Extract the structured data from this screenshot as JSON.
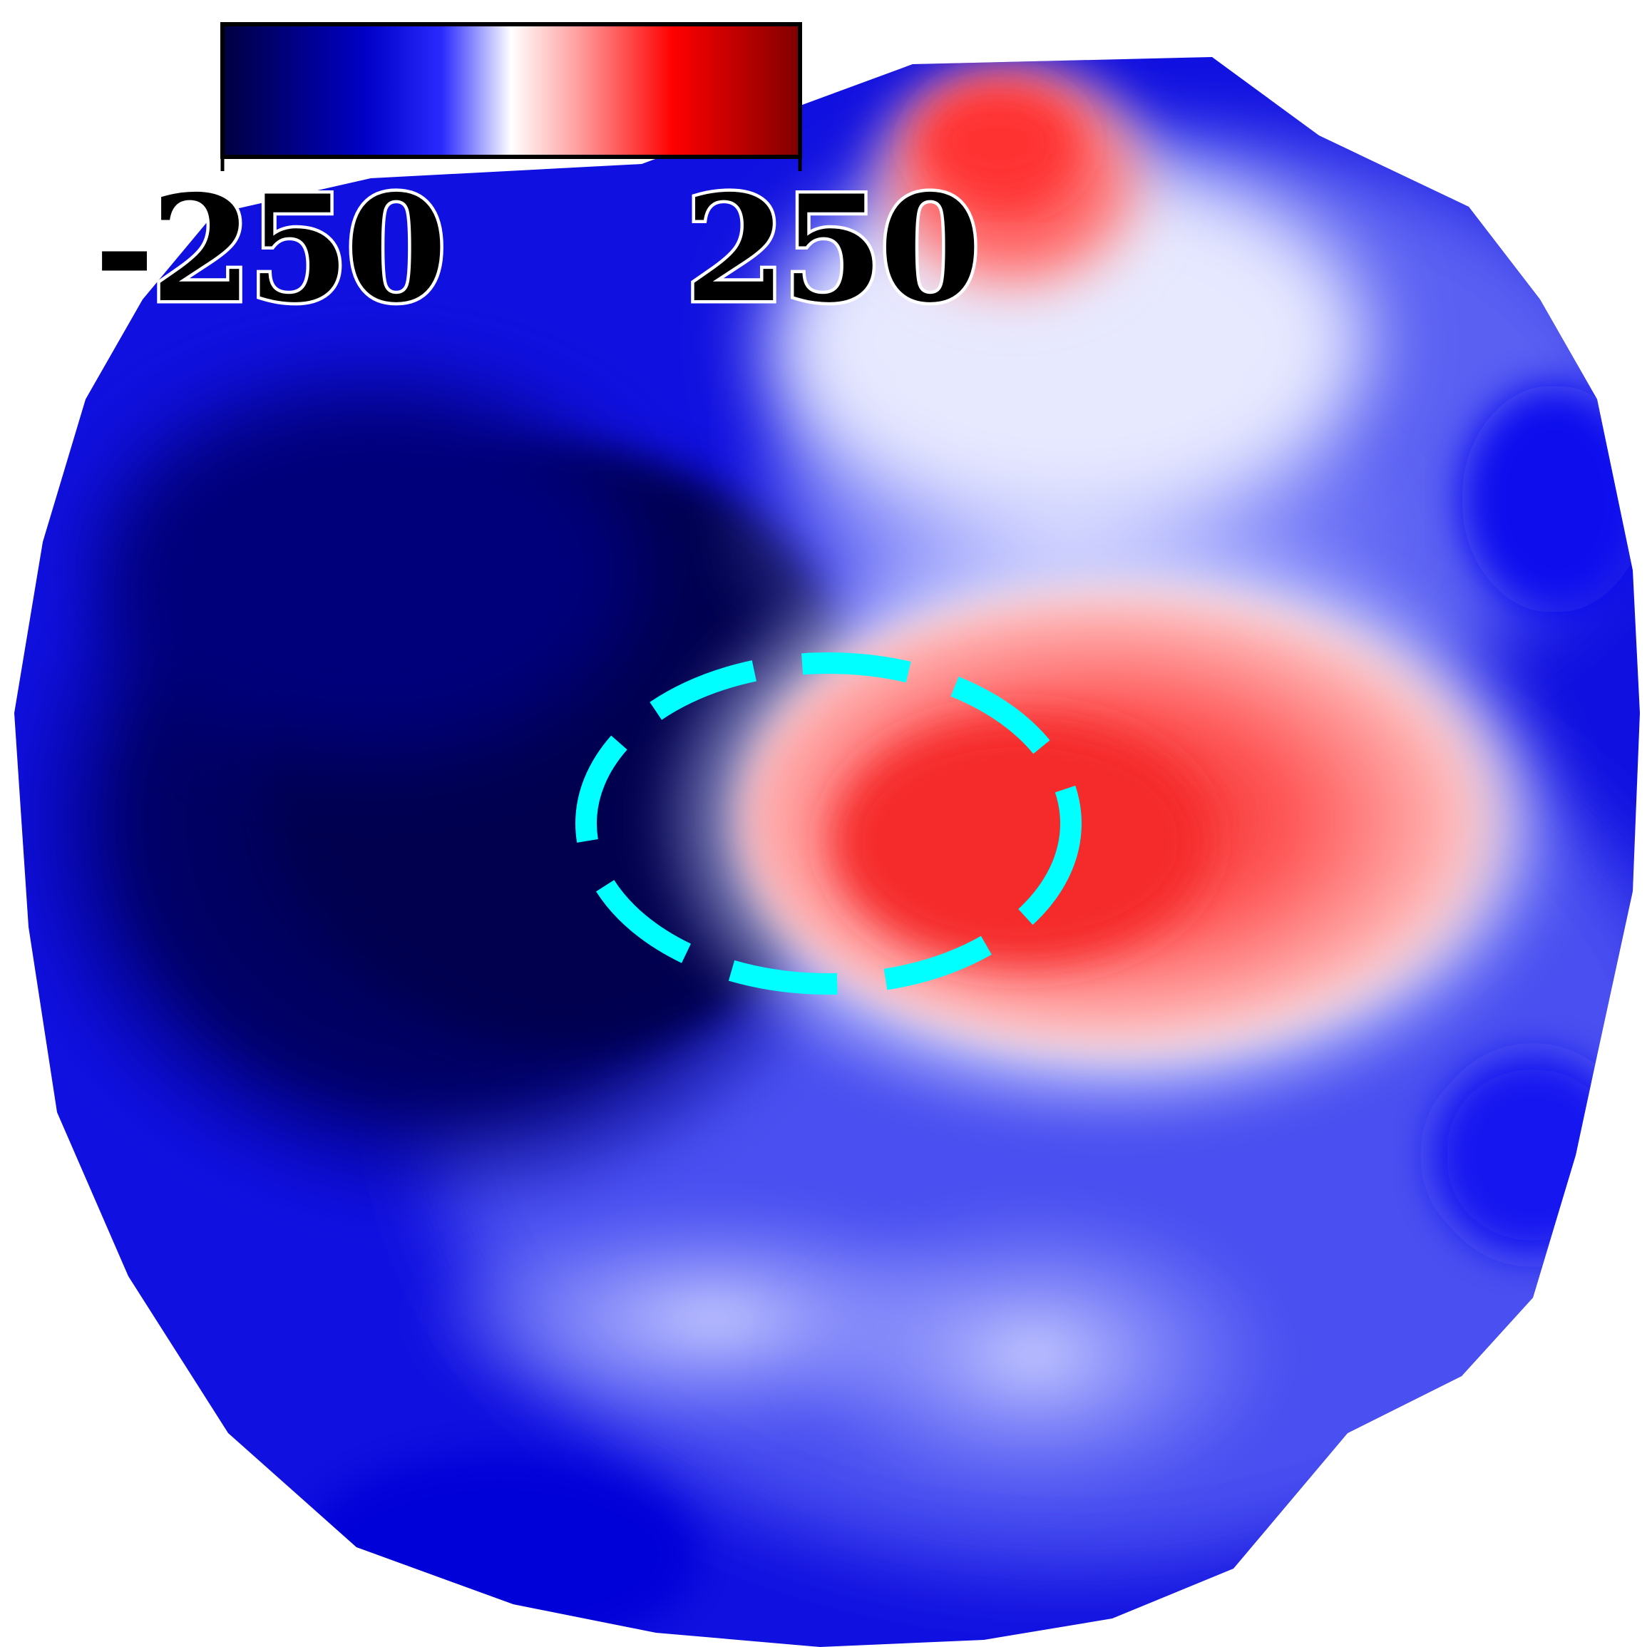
{
  "colorbar": {
    "min_label": "-250",
    "max_label": "250",
    "min_value": -250,
    "max_value": 250,
    "colormap": [
      "#000040",
      "#0000b0",
      "#0000ff",
      "#ffffff",
      "#ff0000",
      "#800000"
    ]
  },
  "map": {
    "colors": {
      "deep_negative": "#000050",
      "negative": "#0a0ae6",
      "light_negative": "#9aa0f5",
      "neutral": "#f2f3ff",
      "positive": "#ff6e6e",
      "strong_positive": "#f21e1e"
    },
    "highlight": {
      "shape": "dashed-ellipse",
      "color": "#00ffff"
    }
  }
}
